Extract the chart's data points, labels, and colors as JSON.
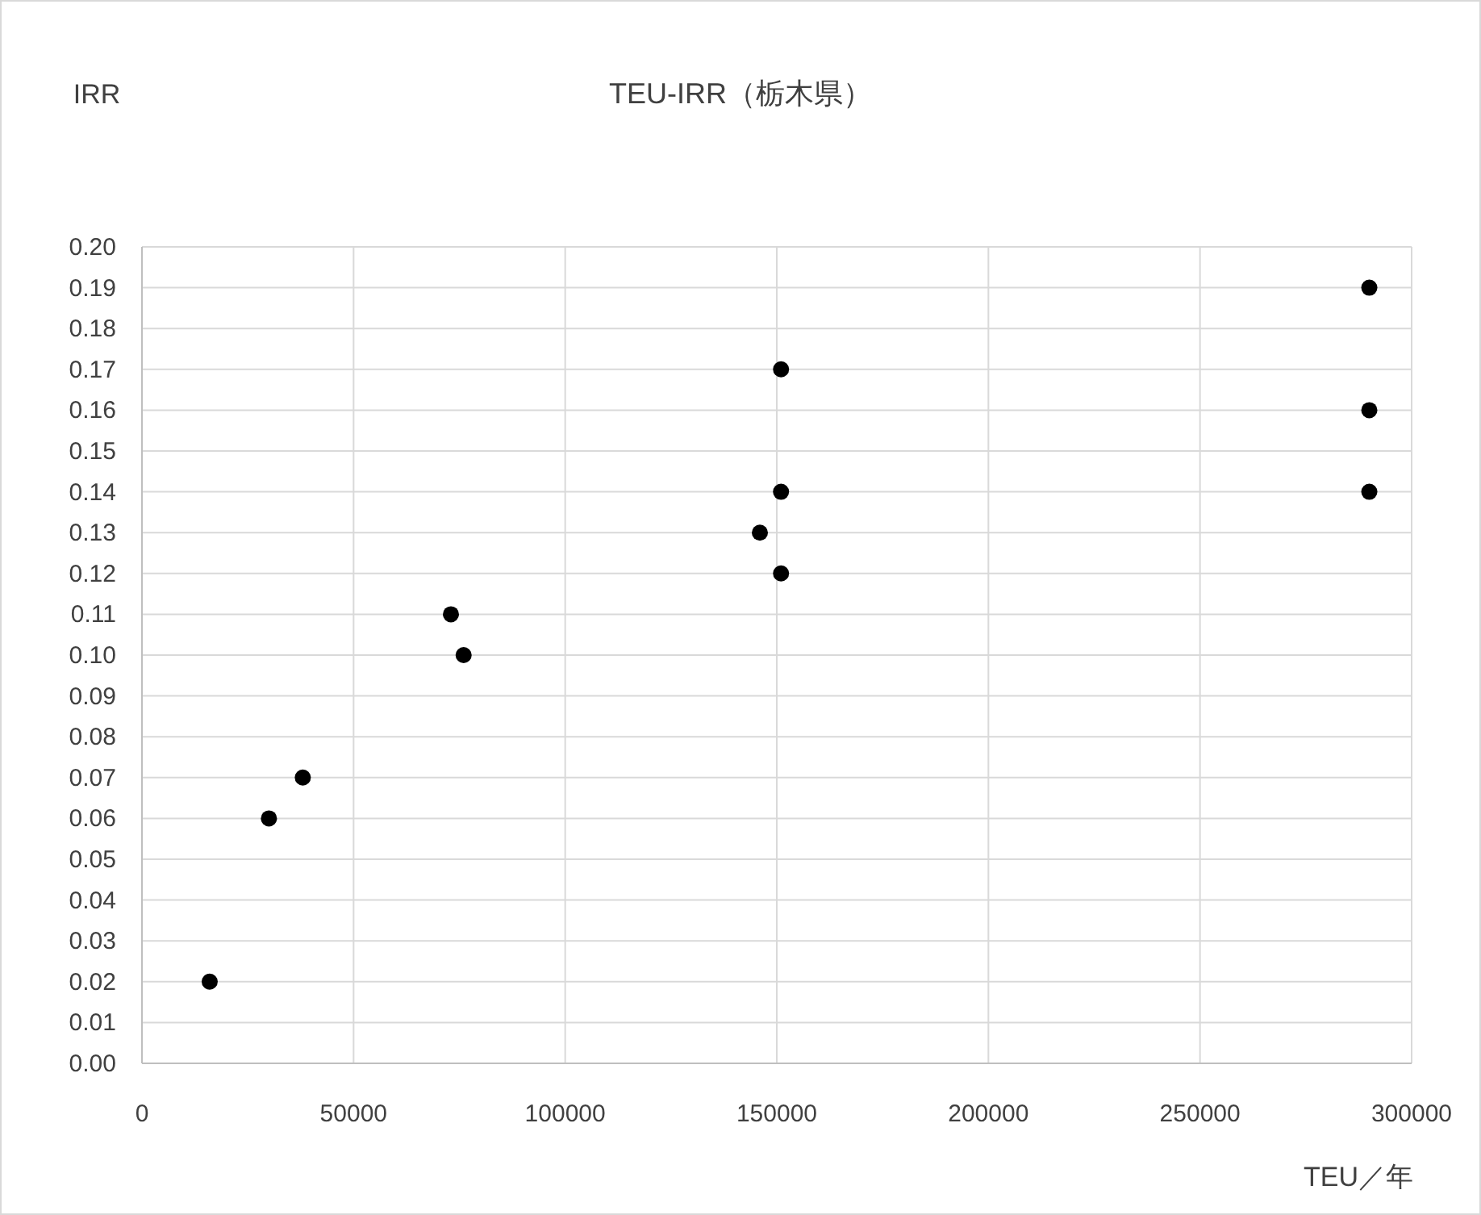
{
  "chart_data": {
    "type": "scatter",
    "title": "TEU-IRR（栃木県）",
    "xlabel": "TEU／年",
    "ylabel": "IRR",
    "series": [
      {
        "color": "#000000",
        "x": [
          16000,
          30000,
          38000,
          73000,
          76000,
          151000,
          151000,
          146000,
          151000,
          290000,
          290000,
          290000
        ],
        "values": [
          0.02,
          0.06,
          0.07,
          0.11,
          0.1,
          0.17,
          0.14,
          0.13,
          0.12,
          0.19,
          0.16,
          0.14
        ]
      }
    ],
    "xlim": [
      0,
      300000
    ],
    "xticks": [
      0,
      50000,
      100000,
      150000,
      200000,
      250000,
      300000
    ],
    "ylim": [
      0,
      0.2
    ],
    "yticks": [
      {
        "value": 0,
        "label": "0.00"
      },
      {
        "value": 0.01,
        "label": "0.01"
      },
      {
        "value": 0.02,
        "label": "0.02"
      },
      {
        "value": 0.03,
        "label": "0.03"
      },
      {
        "value": 0.04,
        "label": "0.04"
      },
      {
        "value": 0.05,
        "label": "0.05"
      },
      {
        "value": 0.06,
        "label": "0.06"
      },
      {
        "value": 0.07,
        "label": "0.07"
      },
      {
        "value": 0.08,
        "label": "0.08"
      },
      {
        "value": 0.09,
        "label": "0.09"
      },
      {
        "value": 0.1,
        "label": "0.10"
      },
      {
        "value": 0.11,
        "label": "0.11"
      },
      {
        "value": 0.12,
        "label": "0.12"
      },
      {
        "value": 0.13,
        "label": "0.13"
      },
      {
        "value": 0.14,
        "label": "0.14"
      },
      {
        "value": 0.15,
        "label": "0.15"
      },
      {
        "value": 0.16,
        "label": "0.16"
      },
      {
        "value": 0.17,
        "label": "0.17"
      },
      {
        "value": 0.18,
        "label": "0.18"
      },
      {
        "value": 0.19,
        "label": "0.19"
      },
      {
        "value": 0.2,
        "label": "0.20"
      }
    ],
    "grid": true,
    "marker": "circle"
  }
}
